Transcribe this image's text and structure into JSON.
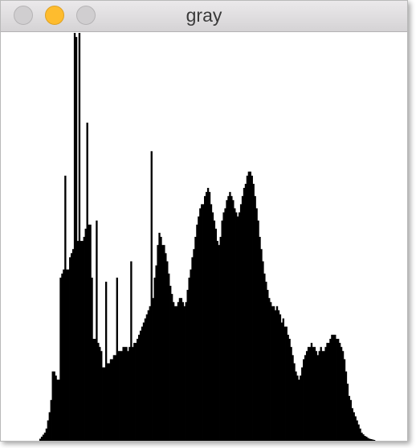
{
  "window": {
    "title": "gray"
  },
  "chart_data": {
    "type": "bar",
    "color": "#000000",
    "xlim": [
      0,
      256
    ],
    "ylim": [
      0,
      100
    ],
    "values": [
      0,
      0,
      0,
      0,
      0,
      0,
      0,
      0,
      0,
      0,
      0,
      0,
      0,
      0,
      0,
      0,
      0,
      0,
      0,
      0,
      0,
      0,
      0,
      0.5,
      1,
      1.5,
      2,
      3,
      5,
      7,
      10,
      17,
      17,
      16,
      15,
      15,
      40,
      41,
      42,
      65,
      42,
      42,
      45,
      46,
      47,
      100,
      99,
      49,
      100,
      49,
      49,
      50,
      52,
      78,
      53,
      53,
      40,
      25,
      25,
      54,
      24,
      23,
      22,
      18,
      18,
      39,
      19,
      19,
      20,
      20,
      21,
      21,
      40,
      22,
      22,
      22,
      23,
      23,
      23,
      22,
      23,
      44,
      23,
      24,
      24,
      25,
      26,
      27,
      28,
      29,
      30,
      31,
      32,
      33,
      71,
      35,
      40,
      43,
      48,
      51,
      50,
      48,
      48,
      46,
      44,
      41,
      38,
      36,
      34,
      33,
      33,
      34,
      35,
      35,
      34,
      33,
      34,
      37,
      40,
      42,
      45,
      47,
      50,
      53,
      55,
      57,
      58,
      58,
      60,
      61,
      62,
      61,
      58,
      56,
      54,
      52,
      49,
      48,
      50,
      54,
      56,
      57,
      59,
      60,
      61,
      60,
      59,
      57,
      56,
      55,
      56,
      58,
      60,
      62,
      63,
      65,
      66,
      66,
      65,
      63,
      60,
      57,
      54,
      50,
      47,
      44,
      41,
      39,
      37,
      35,
      34,
      33,
      33,
      32,
      33,
      32,
      31,
      29,
      30,
      28,
      28,
      26,
      25,
      23,
      21,
      19,
      17,
      16,
      15,
      16,
      18,
      20,
      21,
      22,
      23,
      23,
      24,
      23,
      23,
      22,
      21,
      22,
      23,
      22,
      22,
      23,
      24,
      24,
      25,
      26,
      26,
      26,
      25,
      25,
      24,
      23,
      22,
      20,
      17,
      14,
      11,
      10,
      8,
      7,
      6,
      5,
      4,
      3,
      2,
      1.6,
      1.2,
      1,
      0.7,
      0.5,
      0.4,
      0.3,
      0.2,
      0,
      0,
      0,
      0,
      0,
      0,
      0,
      0,
      0,
      0,
      0,
      0,
      0,
      0,
      0,
      0,
      0,
      0,
      0
    ]
  }
}
